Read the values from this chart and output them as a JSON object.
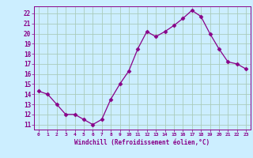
{
  "x": [
    0,
    1,
    2,
    3,
    4,
    5,
    6,
    7,
    8,
    9,
    10,
    11,
    12,
    13,
    14,
    15,
    16,
    17,
    18,
    19,
    20,
    21,
    22,
    23
  ],
  "y": [
    14.3,
    14.0,
    13.0,
    12.0,
    12.0,
    11.5,
    11.0,
    11.5,
    13.5,
    15.0,
    16.3,
    18.5,
    20.2,
    19.7,
    20.2,
    20.8,
    21.5,
    22.3,
    21.7,
    20.0,
    18.5,
    17.2,
    17.0,
    16.5
  ],
  "xlim": [
    -0.5,
    23.5
  ],
  "ylim": [
    10.5,
    22.7
  ],
  "xtick_labels": [
    "0",
    "1",
    "2",
    "3",
    "4",
    "5",
    "6",
    "7",
    "8",
    "9",
    "10",
    "11",
    "12",
    "13",
    "14",
    "15",
    "16",
    "17",
    "18",
    "19",
    "20",
    "21",
    "22",
    "23"
  ],
  "ytick_labels": [
    "11",
    "12",
    "13",
    "14",
    "15",
    "16",
    "17",
    "18",
    "19",
    "20",
    "21",
    "22"
  ],
  "ytick_values": [
    11,
    12,
    13,
    14,
    15,
    16,
    17,
    18,
    19,
    20,
    21,
    22
  ],
  "xlabel": "Windchill (Refroidissement éolien,°C)",
  "line_color": "#880088",
  "marker_color": "#880088",
  "bg_color": "#cceeff",
  "grid_color": "#aaccbb",
  "label_color": "#880088",
  "tick_color": "#880088",
  "font_family": "monospace"
}
